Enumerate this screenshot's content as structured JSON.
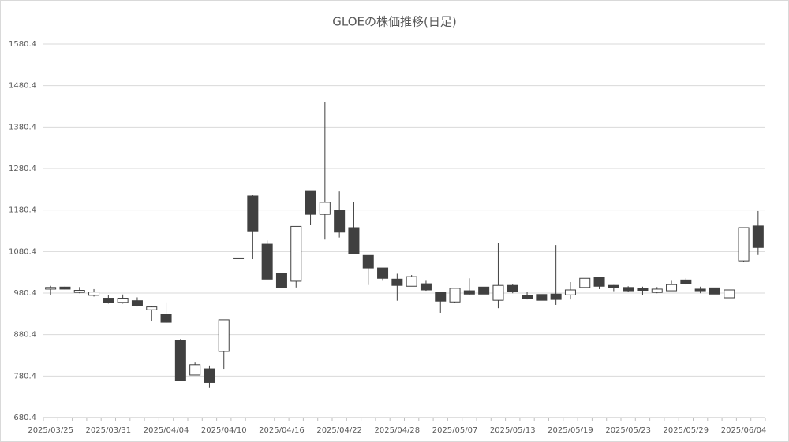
{
  "chart_data": {
    "type": "candlestick",
    "title": "GLOEの株価推移(日足)",
    "categories": [
      "2025/03/25",
      null,
      null,
      null,
      "2025/03/31",
      null,
      null,
      null,
      "2025/04/04",
      null,
      null,
      null,
      "2025/04/10",
      null,
      null,
      null,
      "2025/04/16",
      null,
      null,
      null,
      "2025/04/22",
      null,
      null,
      null,
      "2025/04/28",
      null,
      null,
      null,
      "2025/05/07",
      null,
      null,
      null,
      "2025/05/13",
      null,
      null,
      null,
      "2025/05/19",
      null,
      null,
      null,
      "2025/05/23",
      null,
      null,
      null,
      "2025/05/29",
      null,
      null,
      null,
      "2025/06/04",
      null
    ],
    "open": [
      990,
      995,
      982,
      975,
      968,
      958,
      962,
      940,
      930,
      866,
      783,
      798,
      840,
      1064,
      1214,
      1098,
      1028,
      1009,
      1227,
      1170,
      1180,
      1138,
      1071,
      1041,
      1014,
      997,
      1003,
      982,
      959,
      986,
      995,
      963,
      999,
      975,
      977,
      978,
      976,
      994,
      1018,
      999,
      994,
      992,
      982,
      986,
      1012,
      990,
      993,
      969,
      1058,
      1142
    ],
    "high": [
      998,
      998,
      995,
      990,
      975,
      977,
      970,
      950,
      958,
      870,
      813,
      806,
      916,
      1065,
      1216,
      1107,
      1028,
      1141,
      1227,
      1441,
      1225,
      1200,
      1071,
      1041,
      1027,
      1024,
      1010,
      982,
      992,
      1016,
      995,
      1101,
      1002,
      984,
      977,
      1096,
      1007,
      1016,
      1018,
      1000,
      997,
      996,
      995,
      1010,
      1016,
      996,
      993,
      988,
      1138,
      1178
    ],
    "low": [
      975,
      988,
      980,
      972,
      955,
      955,
      948,
      912,
      908,
      770,
      783,
      753,
      798,
      1063,
      1062,
      1014,
      994,
      994,
      1144,
      1111,
      1114,
      1075,
      1000,
      1010,
      962,
      997,
      986,
      933,
      957,
      975,
      978,
      944,
      980,
      965,
      963,
      952,
      965,
      994,
      990,
      985,
      983,
      975,
      980,
      986,
      1001,
      980,
      978,
      969,
      1055,
      1072
    ],
    "close": [
      994,
      990,
      987,
      983,
      957,
      968,
      950,
      947,
      910,
      770,
      808,
      765,
      916,
      1065,
      1130,
      1014,
      994,
      1141,
      1170,
      1199,
      1127,
      1075,
      1041,
      1016,
      999,
      1020,
      988,
      961,
      992,
      978,
      978,
      999,
      984,
      967,
      963,
      965,
      988,
      1016,
      997,
      994,
      986,
      987,
      990,
      1001,
      1003,
      986,
      978,
      988,
      1138,
      1090
    ],
    "up_color": "#ffffff",
    "down_color": "#404040",
    "line_color": "#404040",
    "ylim": [
      680.4,
      1580.4
    ],
    "yticks": [
      680.4,
      780.4,
      880.4,
      980.4,
      1080.4,
      1180.4,
      1280.4,
      1380.4,
      1480.4,
      1580.4
    ],
    "grid": true
  }
}
